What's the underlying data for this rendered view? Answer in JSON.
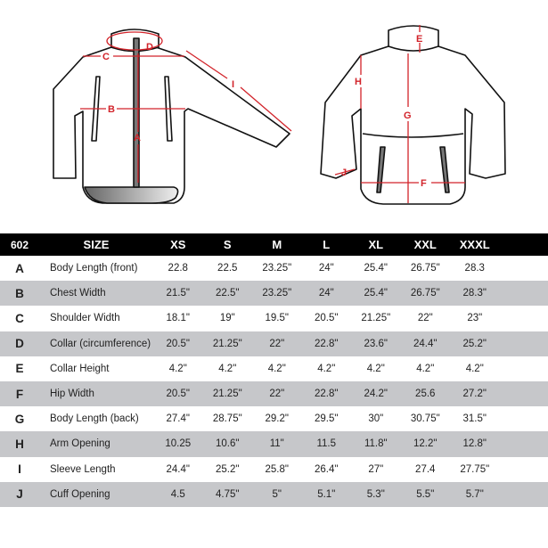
{
  "colors": {
    "measure": "#d2232a",
    "header_bg": "#000000",
    "alt_row": "#c6c7ca"
  },
  "diagram_labels": {
    "front": [
      "A",
      "B",
      "C",
      "D",
      "I"
    ],
    "back": [
      "E",
      "F",
      "G",
      "H",
      "J"
    ]
  },
  "table": {
    "headers": [
      "602",
      "SIZE",
      "XS",
      "S",
      "M",
      "L",
      "XL",
      "XXL",
      "XXXL"
    ],
    "rows": [
      {
        "key": "A",
        "name": "Body Length (front)",
        "values": [
          "22.8",
          "22.5",
          "23.25\"",
          "24\"",
          "25.4\"",
          "26.75\"",
          "28.3"
        ]
      },
      {
        "key": "B",
        "name": "Chest Width",
        "values": [
          "21.5\"",
          "22.5\"",
          "23.25\"",
          "24\"",
          "25.4\"",
          "26.75\"",
          "28.3\""
        ]
      },
      {
        "key": "C",
        "name": "Shoulder Width",
        "values": [
          "18.1\"",
          "19\"",
          "19.5\"",
          "20.5\"",
          "21.25\"",
          "22\"",
          "23\""
        ]
      },
      {
        "key": "D",
        "name": "Collar (circumference)",
        "values": [
          "20.5\"",
          "21.25\"",
          "22\"",
          "22.8\"",
          "23.6\"",
          "24.4\"",
          "25.2\""
        ]
      },
      {
        "key": "E",
        "name": "Collar Height",
        "values": [
          "4.2\"",
          "4.2\"",
          "4.2\"",
          "4.2\"",
          "4.2\"",
          "4.2\"",
          "4.2\""
        ]
      },
      {
        "key": "F",
        "name": "Hip Width",
        "values": [
          "20.5\"",
          "21.25\"",
          "22\"",
          "22.8\"",
          "24.2\"",
          "25.6",
          "27.2\""
        ]
      },
      {
        "key": "G",
        "name": "Body Length (back)",
        "values": [
          "27.4\"",
          "28.75\"",
          "29.2\"",
          "29.5\"",
          "30\"",
          "30.75\"",
          "31.5\""
        ]
      },
      {
        "key": "H",
        "name": "Arm Opening",
        "values": [
          "10.25",
          "10.6\"",
          "11\"",
          "11.5",
          "11.8\"",
          "12.2\"",
          "12.8\""
        ]
      },
      {
        "key": "I",
        "name": "Sleeve Length",
        "values": [
          "24.4\"",
          "25.2\"",
          "25.8\"",
          "26.4\"",
          "27\"",
          "27.4",
          "27.75\""
        ]
      },
      {
        "key": "J",
        "name": "Cuff Opening",
        "values": [
          "4.5",
          "4.75\"",
          "5\"",
          "5.1\"",
          "5.3\"",
          "5.5\"",
          "5.7\""
        ]
      }
    ]
  }
}
